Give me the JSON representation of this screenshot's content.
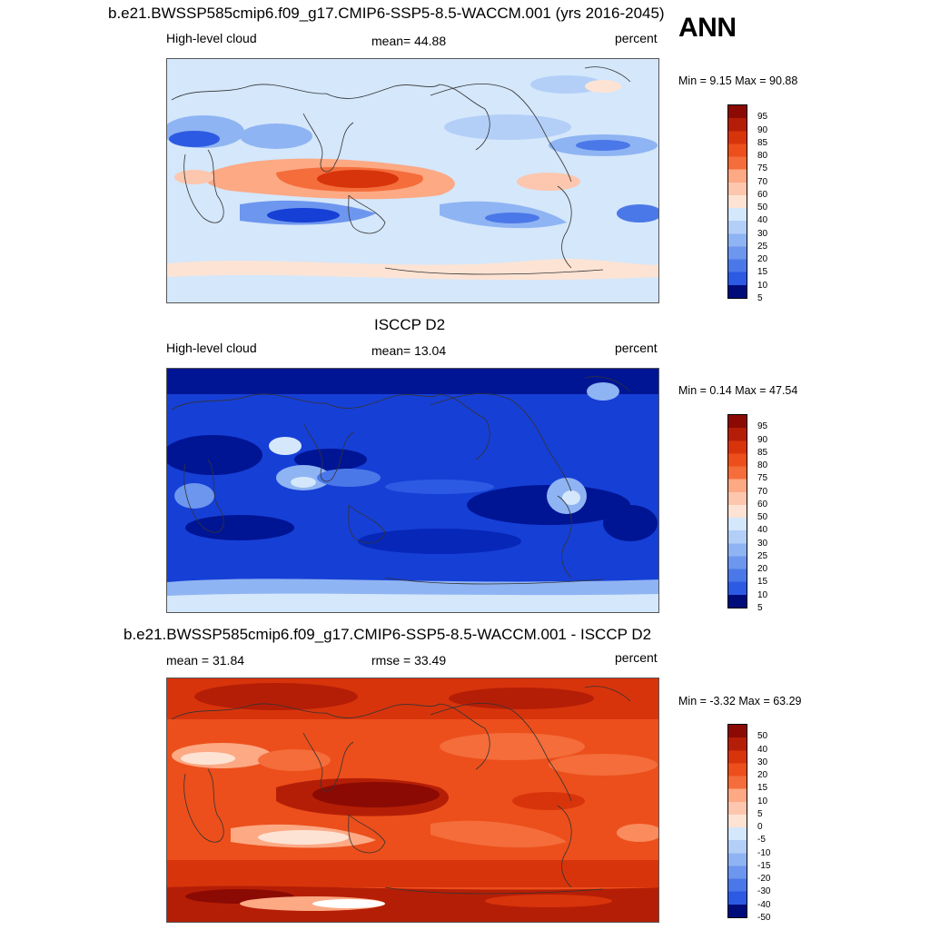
{
  "header": {
    "model_title": "b.e21.BWSSP585cmip6.f09_g17.CMIP6-SSP5-8.5-WACCM.001 (yrs 2016-2045)",
    "season": "ANN"
  },
  "colors": {
    "background": "#ffffff",
    "pos_ramp": [
      "#fde3d4",
      "#fcc7ae",
      "#fca984",
      "#f98b5d",
      "#f46d3b",
      "#ec4f1b",
      "#d8340c",
      "#b51e06",
      "#8b0a04"
    ],
    "neg_ramp": [
      "#d4e7fb",
      "#b3cff8",
      "#8fb4f3",
      "#6d96ee",
      "#4b78e8",
      "#2d5ae2",
      "#163fd6",
      "#0727b8",
      "#001594",
      "#000c7a"
    ]
  },
  "panels": [
    {
      "id": "model",
      "left_label": "High-level cloud",
      "center_label": "mean=  44.88",
      "right_label": "percent",
      "minmax": "Min =   9.15 Max =  90.88",
      "colorbar_levels": [
        "95",
        "90",
        "85",
        "80",
        "75",
        "70",
        "60",
        "50",
        "40",
        "30",
        "25",
        "20",
        "15",
        "10",
        "5"
      ]
    },
    {
      "id": "obs",
      "title": "ISCCP D2",
      "left_label": "High-level cloud",
      "center_label": "mean=  13.04",
      "right_label": "percent",
      "minmax": "Min =   0.14 Max =  47.54",
      "colorbar_levels": [
        "95",
        "90",
        "85",
        "80",
        "75",
        "70",
        "60",
        "50",
        "40",
        "30",
        "25",
        "20",
        "15",
        "10",
        "5"
      ]
    },
    {
      "id": "diff",
      "title": "b.e21.BWSSP585cmip6.f09_g17.CMIP6-SSP5-8.5-WACCM.001 - ISCCP D2",
      "left_label": "mean =  31.84",
      "center_label": "rmse =  33.49",
      "right_label": "percent",
      "minmax": "Min =  -3.32 Max =  63.29",
      "colorbar_levels": [
        "50",
        "40",
        "30",
        "20",
        "15",
        "10",
        "5",
        "0",
        "-5",
        "-10",
        "-15",
        "-20",
        "-30",
        "-40",
        "-50"
      ]
    }
  ]
}
